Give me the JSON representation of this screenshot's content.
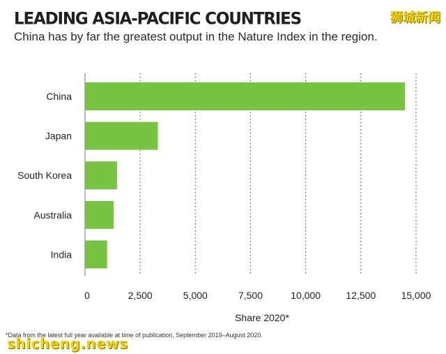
{
  "header": {
    "title": "LEADING ASIA-PACIFIC COUNTRIES",
    "subtitle": "China has by far the greatest output in the Nature Index in the region."
  },
  "watermark": {
    "top": "狮城新闻",
    "bottom": "shicheng.news"
  },
  "footnote": "*Data from the latest full year available at time of publication, September 2019–August 2020.",
  "colors": {
    "bar": "#76c442",
    "grid": "#555555",
    "axis": "#888888"
  },
  "chart_data": {
    "type": "bar",
    "orientation": "horizontal",
    "categories": [
      "China",
      "Japan",
      "South Korea",
      "Australia",
      "India"
    ],
    "values": [
      14500,
      3300,
      1450,
      1300,
      1000
    ],
    "xlabel": "Share 2020*",
    "ylabel": "",
    "xlim": [
      0,
      15000
    ],
    "xticks": [
      0,
      2500,
      5000,
      7500,
      10000,
      12500,
      15000
    ],
    "xtick_labels": [
      "0",
      "2,500",
      "5,000",
      "7,500",
      "10,000",
      "12,500",
      "15,000"
    ],
    "grid": "vertical dotted",
    "legend": "none"
  }
}
